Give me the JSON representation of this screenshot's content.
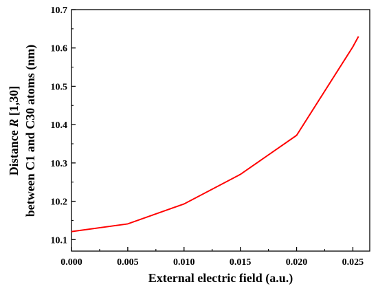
{
  "chart_data": {
    "type": "line",
    "x": [
      0.0,
      0.005,
      0.01,
      0.015,
      0.02,
      0.025,
      0.0255
    ],
    "series": [
      {
        "values": [
          10.121,
          10.141,
          10.193,
          10.27,
          10.372,
          10.603,
          10.63
        ],
        "color": "#ff0000"
      }
    ],
    "xlim": [
      0.0,
      0.0265
    ],
    "ylim": [
      10.07,
      10.7
    ],
    "x_ticks": [
      "0.000",
      "0.005",
      "0.010",
      "0.015",
      "0.020",
      "0.025"
    ],
    "y_ticks": [
      "10.1",
      "10.2",
      "10.3",
      "10.4",
      "10.5",
      "10.6",
      "10.7"
    ],
    "xlabel": "External electric field (a.u.)",
    "ylabel_line1_prefix": "Distance ",
    "ylabel_line1_italic": "R",
    "ylabel_line1_suffix": " [1,30]",
    "ylabel_line2": "between C1 and C30 atoms (nm)",
    "grid": false,
    "legend": false
  }
}
